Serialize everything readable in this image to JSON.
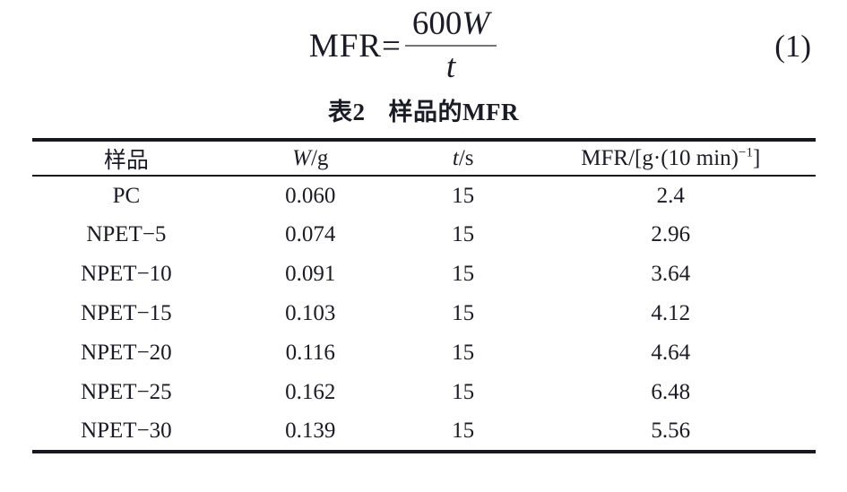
{
  "equation": {
    "lhs": "MFR=",
    "numerator_coefficient": "600",
    "numerator_variable": "W",
    "denominator_variable": "t",
    "number": "(1)"
  },
  "table": {
    "caption": {
      "label": "表2",
      "title": "样品的MFR"
    },
    "columns": [
      {
        "text": "样品"
      },
      {
        "variable": "W",
        "unit": "/g"
      },
      {
        "variable": "t",
        "unit": "/s"
      },
      {
        "prefix": "MFR/[g·(10 min)",
        "superscript": "−1",
        "suffix": "]"
      }
    ],
    "rows": [
      {
        "sample": "PC",
        "w": "0.060",
        "t": "15",
        "mfr": "2.4"
      },
      {
        "sample": "NPET−5",
        "w": "0.074",
        "t": "15",
        "mfr": "2.96"
      },
      {
        "sample": "NPET−10",
        "w": "0.091",
        "t": "15",
        "mfr": "3.64"
      },
      {
        "sample": "NPET−15",
        "w": "0.103",
        "t": "15",
        "mfr": "4.12"
      },
      {
        "sample": "NPET−20",
        "w": "0.116",
        "t": "15",
        "mfr": "4.64"
      },
      {
        "sample": "NPET−25",
        "w": "0.162",
        "t": "15",
        "mfr": "6.48"
      },
      {
        "sample": "NPET−30",
        "w": "0.139",
        "t": "15",
        "mfr": "5.56"
      }
    ]
  },
  "colors": {
    "text": "#1b1b26",
    "rule": "#17171f",
    "fraction_bar": "#73737a",
    "background": "#ffffff"
  }
}
